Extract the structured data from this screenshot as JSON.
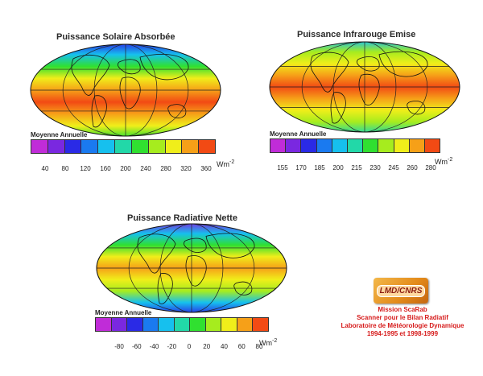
{
  "maps": [
    {
      "title": "Puissance Solaire Absorbée",
      "legend_label": "Moyenne Annuelle",
      "ticks": [
        "40",
        "80",
        "120",
        "160",
        "200",
        "240",
        "280",
        "320",
        "360"
      ],
      "unit": "Wm",
      "unit_exp": "-2"
    },
    {
      "title": "Puissance Infrarouge Emise",
      "legend_label": "Moyenne Annuelle",
      "ticks": [
        "155",
        "170",
        "185",
        "200",
        "215",
        "230",
        "245",
        "260",
        "280"
      ],
      "unit": "Wm",
      "unit_exp": "-2"
    },
    {
      "title": "Puissance Radiative Nette",
      "legend_label": "Moyenne Annuelle",
      "ticks": [
        "-80",
        "-60",
        "-40",
        "-20",
        "0",
        "20",
        "40",
        "60",
        "80"
      ],
      "unit": "Wm",
      "unit_exp": "-2"
    }
  ],
  "colorbar_colors": [
    "#c02cd8",
    "#7a28e0",
    "#2a2ae6",
    "#1a7af0",
    "#16c0ee",
    "#22d8a8",
    "#30e030",
    "#a6ec1e",
    "#f0ee1a",
    "#f6a018",
    "#f24a14"
  ],
  "logo": {
    "text": "LMD/CNRS"
  },
  "credits": [
    "Mission ScaRab",
    "Scanner pour le Bilan Radiatif",
    "Laboratoire de Météorologie Dynamique",
    "1994-1995 et 1998-1999"
  ]
}
